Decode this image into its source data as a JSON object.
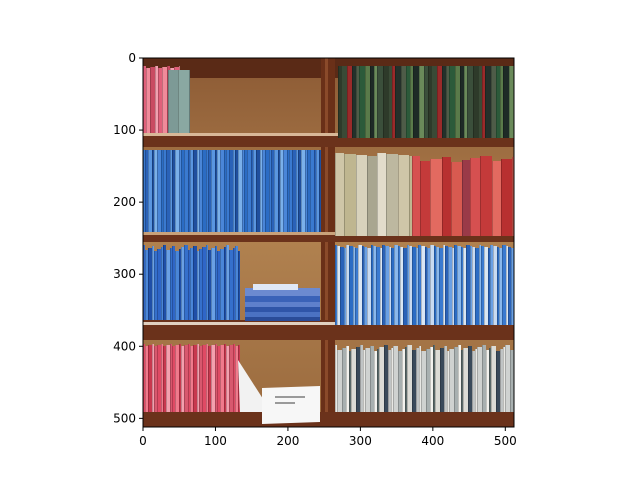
{
  "image": {
    "description_colors": {
      "wood": "#7a3a22",
      "wood_dark": "#4e2414",
      "panel": "#a57a4a",
      "shelf_edge": "#c9a27a"
    }
  },
  "axes": {
    "x_ticks": [
      "0",
      "100",
      "200",
      "300",
      "400",
      "500"
    ],
    "y_ticks": [
      "0",
      "100",
      "200",
      "300",
      "400",
      "500"
    ],
    "xlim": [
      0,
      512
    ],
    "ylim": [
      512,
      0
    ]
  }
}
